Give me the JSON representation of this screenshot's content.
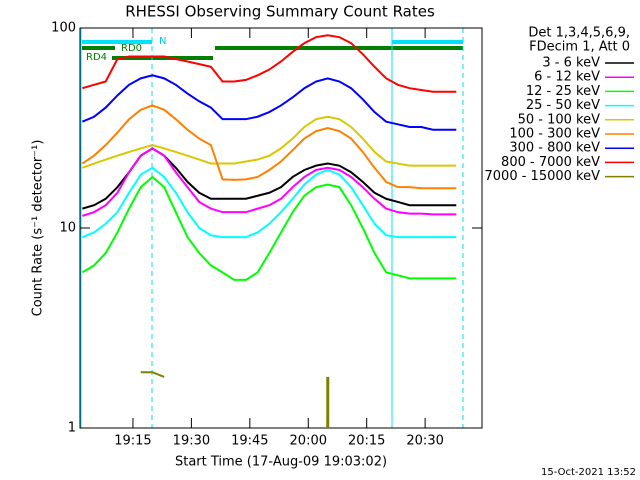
{
  "chart_data": {
    "type": "line",
    "title": "RHESSI Observing Summary Count Rates",
    "x_label": "Start Time (17-Aug-09 19:03:02)",
    "y_label": "Count Rate (s⁻¹ detector⁻¹)",
    "legend_title": [
      "Det 1,3,4,5,6,9,",
      "FDecim 1, Att 0"
    ],
    "timestamp": "15-Oct-2021 13:52",
    "annotations": [
      "N",
      "RD0",
      "RD4"
    ],
    "log_y": true,
    "xlim": [
      1.4,
      104.6
    ],
    "xticks": [
      {
        "value": 15,
        "label": "19:15"
      },
      {
        "value": 30,
        "label": "19:30"
      },
      {
        "value": 45,
        "label": "19:45"
      },
      {
        "value": 60,
        "label": "20:00"
      },
      {
        "value": 75,
        "label": "20:15"
      },
      {
        "value": 90,
        "label": "20:30"
      }
    ],
    "ylim": [
      1,
      100
    ],
    "yticks": [
      1,
      10,
      100
    ],
    "x": [
      2,
      5,
      8,
      11,
      14,
      17,
      20,
      23,
      26,
      29,
      32,
      35,
      38,
      41,
      44,
      47,
      50,
      53,
      56,
      59,
      62,
      65,
      68,
      71,
      74,
      77,
      80,
      83,
      86,
      89,
      92,
      95,
      98
    ],
    "series": [
      {
        "name": "3 - 6 keV",
        "color": "#000000",
        "values": [
          12.5,
          13,
          14,
          16,
          19,
          23,
          25,
          23,
          20,
          17,
          15,
          14,
          14,
          14,
          14,
          14.5,
          15,
          16,
          18,
          19.5,
          20.5,
          21,
          20.5,
          19,
          17,
          15,
          14,
          13.5,
          13,
          13,
          13,
          13,
          13
        ]
      },
      {
        "name": "6 - 12 keV",
        "color": "#ff00ff",
        "values": [
          11.5,
          12,
          13,
          15,
          19,
          23,
          25,
          23,
          19,
          16,
          13.5,
          12.5,
          12,
          12,
          12,
          12.5,
          13,
          14,
          16,
          18,
          19.5,
          20,
          19.5,
          18,
          16,
          14,
          12.5,
          12,
          11.8,
          11.8,
          11.7,
          11.7,
          11.7
        ]
      },
      {
        "name": "12 - 25 keV",
        "color": "#00ff00",
        "values": [
          6,
          6.5,
          7.5,
          9.5,
          12.5,
          16,
          18,
          16,
          12,
          9,
          7.5,
          6.5,
          6,
          5.5,
          5.5,
          6,
          7.5,
          9.5,
          12,
          14.5,
          16,
          16.5,
          16,
          13,
          10,
          7.5,
          6,
          5.8,
          5.6,
          5.6,
          5.6,
          5.6,
          5.6
        ]
      },
      {
        "name": "25 - 50 keV",
        "color": "#00ffff",
        "values": [
          9,
          9.5,
          10.5,
          12,
          15,
          18.5,
          20,
          18,
          15,
          12,
          10,
          9.2,
          9,
          9,
          9,
          9.5,
          10.5,
          12,
          14,
          16.5,
          18.5,
          19.5,
          18.5,
          16,
          13,
          10.5,
          9.2,
          9,
          9,
          9,
          9,
          9,
          9
        ]
      },
      {
        "name": "50 - 100 keV",
        "color": "#d8c800",
        "values": [
          20,
          21,
          22,
          23,
          24,
          25,
          26,
          25,
          24,
          23,
          22,
          21,
          21,
          21,
          21.5,
          22,
          23,
          25,
          28,
          32,
          35,
          36,
          35,
          32,
          28,
          24,
          21.5,
          21,
          20.5,
          20.5,
          20.5,
          20.5,
          20.5
        ]
      },
      {
        "name": "100 - 300 keV",
        "color": "#ff8000",
        "values": [
          21,
          23,
          26,
          30,
          35,
          39,
          41,
          39,
          35,
          31,
          28,
          26,
          17.5,
          17.4,
          17.5,
          18,
          19.5,
          21.5,
          24.5,
          28,
          30.5,
          31.6,
          30.5,
          28,
          24,
          20,
          17,
          16,
          16,
          15.8,
          15.8,
          15.8,
          15.8
        ]
      },
      {
        "name": "300 - 800 keV",
        "color": "#0000ff",
        "values": [
          34,
          36,
          40,
          46,
          52,
          56,
          58,
          56,
          52,
          47,
          43,
          40,
          35,
          35,
          35,
          36,
          38,
          41,
          45,
          50,
          54,
          56,
          54,
          50,
          44,
          38,
          34,
          33,
          32,
          32,
          31,
          31,
          31
        ]
      },
      {
        "name": "800 - 7000 keV",
        "color": "#ff0000",
        "values": [
          50,
          52,
          54,
          70,
          72,
          72,
          72,
          72,
          70,
          68,
          66,
          64,
          54,
          54,
          55,
          58,
          62,
          68,
          76,
          84,
          90,
          92,
          90,
          84,
          74,
          64,
          56,
          52,
          50,
          49,
          48,
          48,
          48
        ]
      },
      {
        "name": "7000 - 15000 keV",
        "color": "#808000",
        "values": [
          null,
          null,
          null,
          null,
          null,
          1.9,
          1.9,
          1.8,
          null,
          null,
          null,
          null,
          null,
          null,
          null,
          null,
          null,
          null,
          null,
          null,
          null,
          1.8,
          null,
          null,
          null,
          null,
          null,
          null,
          null,
          null,
          null,
          null,
          null
        ]
      }
    ]
  }
}
